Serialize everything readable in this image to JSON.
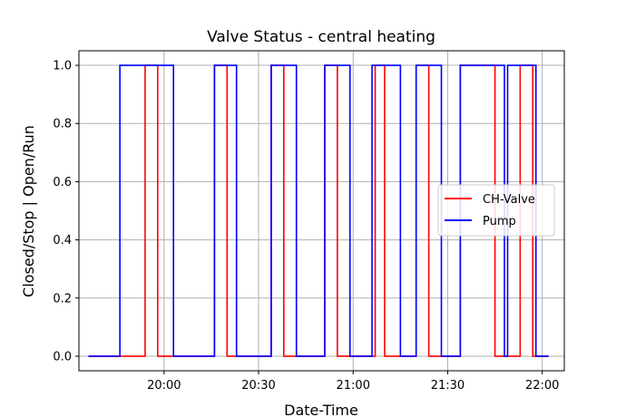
{
  "chart_data": {
    "type": "line",
    "title": "Valve Status - central heating",
    "xlabel": "Date-Time",
    "ylabel": "Closed/Stop | Open/Run",
    "xlim": [
      "19:33",
      "22:07"
    ],
    "ylim": [
      -0.05,
      1.05
    ],
    "x_ticks": [
      "20:00",
      "20:30",
      "21:00",
      "21:30",
      "22:00"
    ],
    "y_ticks": [
      "0.0",
      "0.2",
      "0.4",
      "0.6",
      "0.8",
      "1.0"
    ],
    "grid": true,
    "legend_position": "center-right",
    "series": [
      {
        "name": "CH-Valve",
        "color": "#ff0000",
        "line_shape": "step",
        "points": [
          [
            "19:36",
            0
          ],
          [
            "19:54",
            0
          ],
          [
            "19:54",
            1
          ],
          [
            "19:58",
            1
          ],
          [
            "19:58",
            0
          ],
          [
            "20:16",
            0
          ],
          [
            "20:16",
            1
          ],
          [
            "20:20",
            1
          ],
          [
            "20:20",
            0
          ],
          [
            "20:34",
            0
          ],
          [
            "20:34",
            1
          ],
          [
            "20:38",
            1
          ],
          [
            "20:38",
            0
          ],
          [
            "20:51",
            0
          ],
          [
            "20:51",
            1
          ],
          [
            "20:55",
            1
          ],
          [
            "20:55",
            0
          ],
          [
            "21:07",
            0
          ],
          [
            "21:07",
            1
          ],
          [
            "21:10",
            1
          ],
          [
            "21:10",
            0
          ],
          [
            "21:20",
            0
          ],
          [
            "21:20",
            1
          ],
          [
            "21:24",
            1
          ],
          [
            "21:24",
            0
          ],
          [
            "21:34",
            0
          ],
          [
            "21:34",
            1
          ],
          [
            "21:45",
            1
          ],
          [
            "21:45",
            0
          ],
          [
            "21:53",
            0
          ],
          [
            "21:53",
            1
          ],
          [
            "21:57",
            1
          ],
          [
            "21:57",
            0
          ],
          [
            "22:02",
            0
          ]
        ]
      },
      {
        "name": "Pump",
        "color": "#0000ff",
        "line_shape": "step",
        "points": [
          [
            "19:36",
            0
          ],
          [
            "19:46",
            0
          ],
          [
            "19:46",
            1
          ],
          [
            "20:03",
            1
          ],
          [
            "20:03",
            0
          ],
          [
            "20:16",
            0
          ],
          [
            "20:16",
            1
          ],
          [
            "20:23",
            1
          ],
          [
            "20:23",
            0
          ],
          [
            "20:34",
            0
          ],
          [
            "20:34",
            1
          ],
          [
            "20:42",
            1
          ],
          [
            "20:42",
            0
          ],
          [
            "20:51",
            0
          ],
          [
            "20:51",
            1
          ],
          [
            "20:59",
            1
          ],
          [
            "20:59",
            0
          ],
          [
            "21:06",
            0
          ],
          [
            "21:06",
            1
          ],
          [
            "21:15",
            1
          ],
          [
            "21:15",
            0
          ],
          [
            "21:20",
            0
          ],
          [
            "21:20",
            1
          ],
          [
            "21:28",
            1
          ],
          [
            "21:28",
            0
          ],
          [
            "21:34",
            0
          ],
          [
            "21:34",
            1
          ],
          [
            "21:48",
            1
          ],
          [
            "21:48",
            0
          ],
          [
            "21:49",
            0
          ],
          [
            "21:49",
            1
          ],
          [
            "21:58",
            1
          ],
          [
            "21:58",
            0
          ],
          [
            "22:02",
            0
          ]
        ]
      }
    ]
  }
}
